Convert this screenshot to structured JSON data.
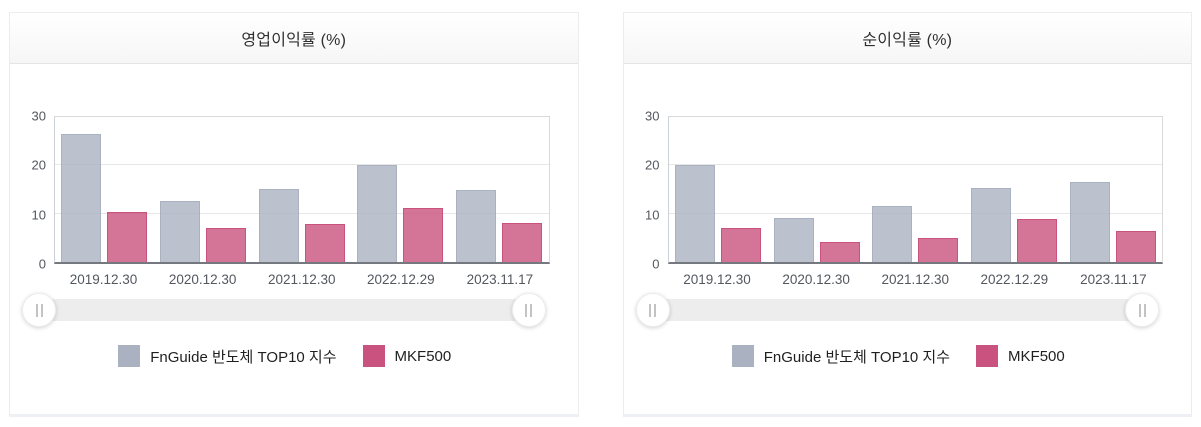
{
  "colors": {
    "series1": "#aab1c0",
    "series2": "#c9537e",
    "bar_fill_opacity": 0.8,
    "grid": "#e7e7e7",
    "axis_line": "#75797f",
    "plot_border": "#d9d9d9",
    "tick_label": "#53575e",
    "slider_track": "#ededed"
  },
  "icons": {
    "slider_handle": "grip-vertical-icon"
  },
  "chart_data": [
    {
      "type": "bar",
      "title": "영업이익률 (%)",
      "categories": [
        "2019.12.30",
        "2020.12.30",
        "2021.12.30",
        "2022.12.29",
        "2023.11.17"
      ],
      "series": [
        {
          "name": "FnGuide 반도체 TOP10 지수",
          "color": "#aab1c0",
          "values": [
            26.5,
            12.7,
            15.2,
            20.0,
            14.9
          ]
        },
        {
          "name": "MKF500",
          "color": "#c9537e",
          "values": [
            10.4,
            7.0,
            7.8,
            11.1,
            8.0
          ]
        }
      ],
      "xlabel": "",
      "ylabel": "",
      "ylim": [
        0,
        30
      ],
      "yticks": [
        0,
        10,
        20,
        30
      ],
      "grid": true,
      "legend_position": "bottom"
    },
    {
      "type": "bar",
      "title": "순이익률 (%)",
      "categories": [
        "2019.12.30",
        "2020.12.30",
        "2021.12.30",
        "2022.12.29",
        "2023.11.17"
      ],
      "series": [
        {
          "name": "FnGuide 반도체 TOP10 지수",
          "color": "#aab1c0",
          "values": [
            20.0,
            9.2,
            11.5,
            15.3,
            16.6
          ]
        },
        {
          "name": "MKF500",
          "color": "#c9537e",
          "values": [
            7.0,
            4.2,
            5.0,
            9.0,
            6.5
          ]
        }
      ],
      "xlabel": "",
      "ylabel": "",
      "ylim": [
        0,
        30
      ],
      "yticks": [
        0,
        10,
        20,
        30
      ],
      "grid": true,
      "legend_position": "bottom"
    }
  ]
}
